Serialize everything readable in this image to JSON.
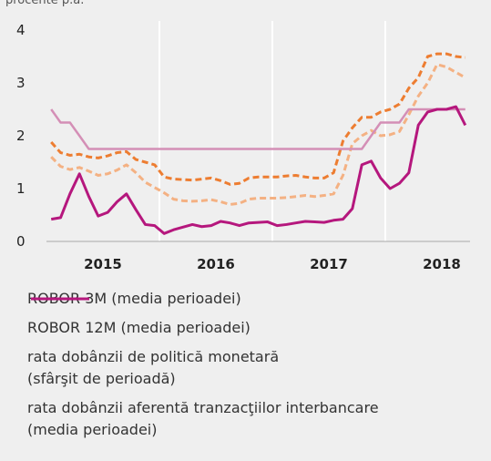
{
  "chart_data": {
    "type": "line",
    "ylabel": "procente p.a.",
    "x": [
      2015.042,
      2015.125,
      2015.208,
      2015.292,
      2015.375,
      2015.458,
      2015.542,
      2015.625,
      2015.708,
      2015.792,
      2015.875,
      2015.958,
      2016.042,
      2016.125,
      2016.208,
      2016.292,
      2016.375,
      2016.458,
      2016.542,
      2016.625,
      2016.708,
      2016.792,
      2016.875,
      2016.958,
      2017.042,
      2017.125,
      2017.208,
      2017.292,
      2017.375,
      2017.458,
      2017.542,
      2017.625,
      2017.708,
      2017.792,
      2017.875,
      2017.958,
      2018.042,
      2018.125,
      2018.208,
      2018.292,
      2018.375,
      2018.458,
      2018.542,
      2018.625,
      2018.708
    ],
    "series": [
      {
        "name": "ROBOR 3M (media perioadei)",
        "color": "#f4b183",
        "dash": true,
        "values": [
          1.6,
          1.42,
          1.36,
          1.4,
          1.33,
          1.25,
          1.28,
          1.35,
          1.45,
          1.3,
          1.12,
          1.02,
          0.92,
          0.8,
          0.77,
          0.76,
          0.77,
          0.79,
          0.75,
          0.7,
          0.72,
          0.8,
          0.82,
          0.82,
          0.82,
          0.83,
          0.85,
          0.87,
          0.85,
          0.87,
          0.9,
          1.25,
          1.85,
          2.0,
          2.1,
          2.0,
          2.02,
          2.08,
          2.4,
          2.75,
          3.0,
          3.35,
          3.3,
          3.2,
          3.1
        ]
      },
      {
        "name": "ROBOR 12M (media perioadei)",
        "color": "#ed7d31",
        "dash": true,
        "values": [
          1.88,
          1.68,
          1.63,
          1.65,
          1.6,
          1.58,
          1.62,
          1.68,
          1.7,
          1.55,
          1.5,
          1.45,
          1.22,
          1.18,
          1.17,
          1.16,
          1.18,
          1.2,
          1.15,
          1.08,
          1.1,
          1.2,
          1.22,
          1.22,
          1.22,
          1.24,
          1.25,
          1.22,
          1.2,
          1.2,
          1.3,
          1.9,
          2.15,
          2.35,
          2.35,
          2.45,
          2.5,
          2.6,
          2.9,
          3.1,
          3.5,
          3.55,
          3.55,
          3.5,
          3.48
        ]
      },
      {
        "name": "rata dobânzii de politică monetară\n(sfârşit de perioadă)",
        "color": "#d48fb6",
        "dash": false,
        "values": [
          2.5,
          2.25,
          2.25,
          2.0,
          1.75,
          1.75,
          1.75,
          1.75,
          1.75,
          1.75,
          1.75,
          1.75,
          1.75,
          1.75,
          1.75,
          1.75,
          1.75,
          1.75,
          1.75,
          1.75,
          1.75,
          1.75,
          1.75,
          1.75,
          1.75,
          1.75,
          1.75,
          1.75,
          1.75,
          1.75,
          1.75,
          1.75,
          1.75,
          1.75,
          2.0,
          2.25,
          2.25,
          2.25,
          2.5,
          2.5,
          2.5,
          2.5,
          2.5,
          2.5,
          2.5
        ]
      },
      {
        "name": "rata dobânzii aferentă tranzacţiilor interbancare\n(media perioadei)",
        "color": "#b5177d",
        "dash": false,
        "values": [
          0.42,
          0.45,
          0.9,
          1.28,
          0.85,
          0.48,
          0.55,
          0.75,
          0.9,
          0.6,
          0.32,
          0.3,
          0.15,
          0.22,
          0.27,
          0.32,
          0.28,
          0.3,
          0.38,
          0.35,
          0.3,
          0.35,
          0.36,
          0.37,
          0.3,
          0.32,
          0.35,
          0.38,
          0.37,
          0.36,
          0.4,
          0.42,
          0.62,
          1.45,
          1.52,
          1.2,
          1.0,
          1.1,
          1.3,
          2.2,
          2.45,
          2.5,
          2.5,
          2.55,
          2.2
        ]
      }
    ],
    "xlim": [
      2015,
      2018.75
    ],
    "xticks": [
      {
        "value": 2015.5,
        "label": "2015"
      },
      {
        "value": 2016.5,
        "label": "2016"
      },
      {
        "value": 2017.5,
        "label": "2017"
      },
      {
        "value": 2018.5,
        "label": "2018"
      }
    ],
    "xgrid": [
      2016,
      2017,
      2018
    ],
    "ylim": [
      0,
      4
    ],
    "yticks": [
      0,
      1,
      2,
      3,
      4
    ]
  }
}
